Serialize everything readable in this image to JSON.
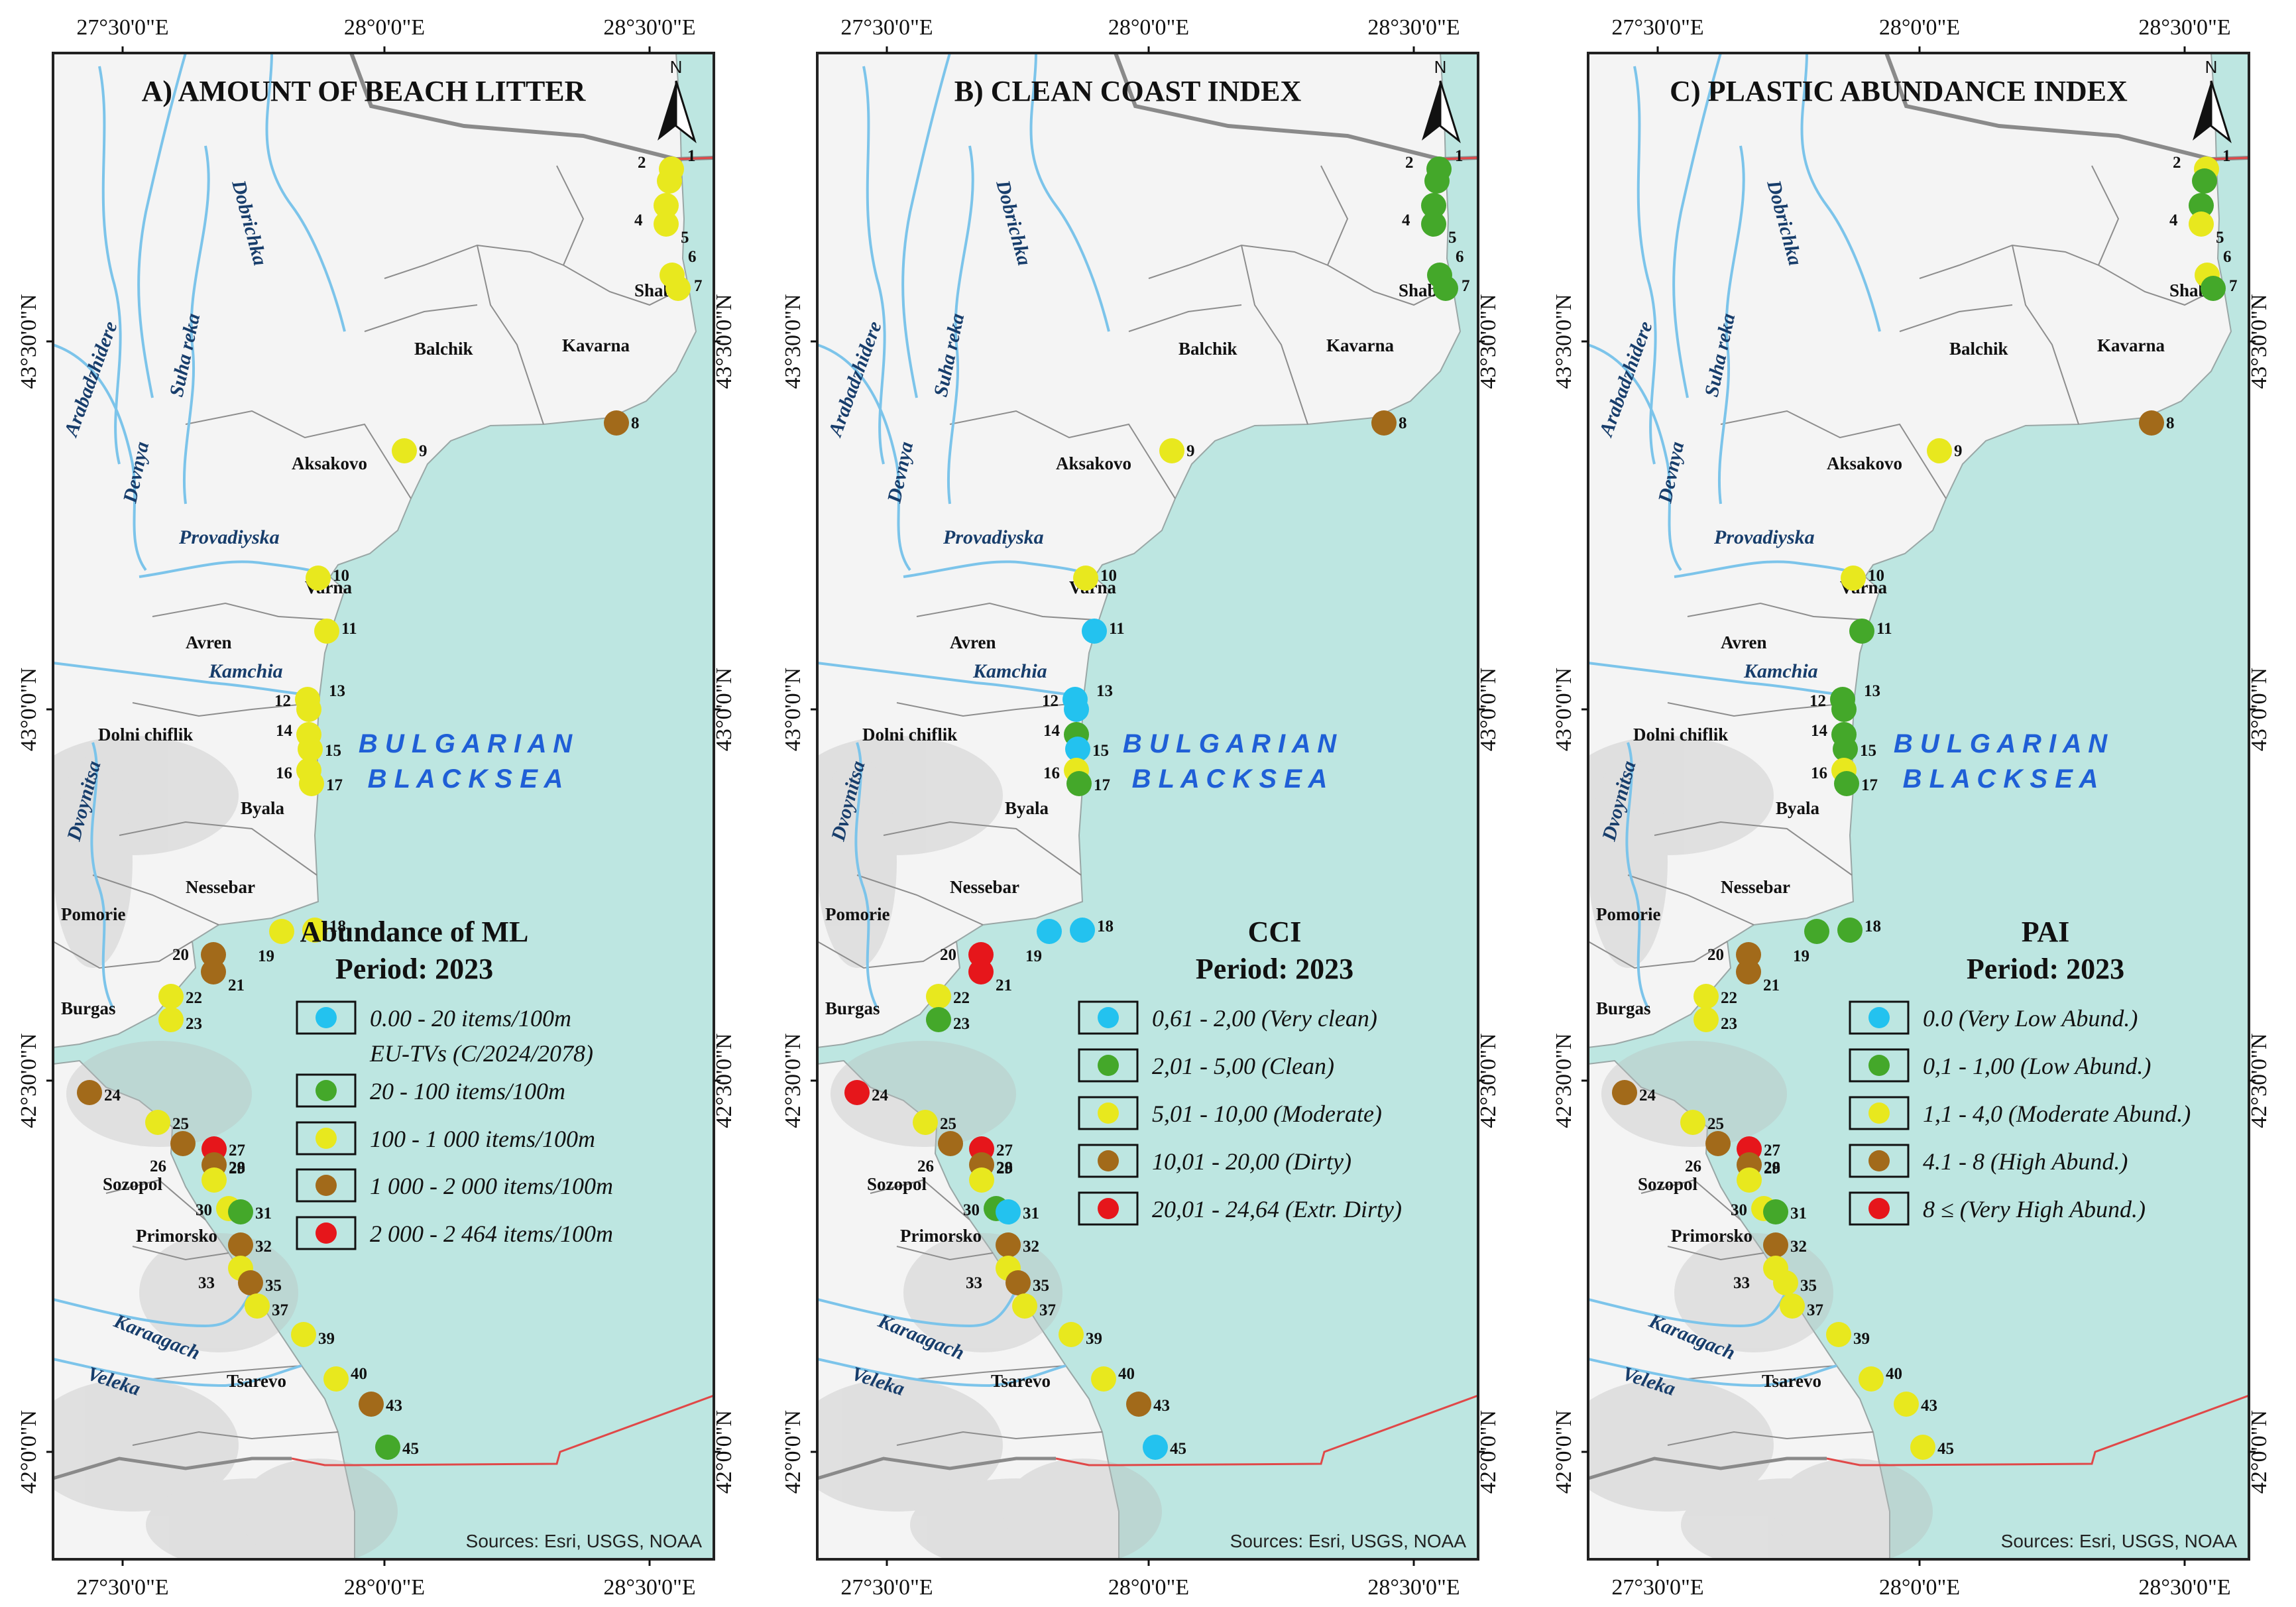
{
  "colors": {
    "sea": "#bde6e1",
    "land": "#f4f4f4",
    "river": "#7cc4ea",
    "border_eu": "#e04848",
    "border_ro": "#8a8a8a",
    "frame": "#222222",
    "sea_label": "#1f5fd6",
    "cls_blue": "#23c2ef",
    "cls_green": "#44a82a",
    "cls_yellow": "#e8e81e",
    "cls_brown": "#a26a1a",
    "cls_red": "#e6161b"
  },
  "axis_labels": {
    "lon_top": [
      "27°30'0\"E",
      "28°0'0\"E",
      "28°30'0\"E"
    ],
    "lon_bottom": [
      "27°30'0\"E",
      "28°0'0\"E",
      "28°30'0\"E"
    ],
    "lat": [
      "43°30'0\"N",
      "43°0'0\"N",
      "42°30'0\"N",
      "42°0'0\"N"
    ]
  },
  "map_text": {
    "north": "N",
    "sea": [
      "B U L G A R I A N",
      "B L A C K   S E A"
    ],
    "source": "Sources: Esri, USGS, NOAA",
    "towns": [
      "Shabla",
      "Kavarna",
      "Balchik",
      "Aksakovo",
      "Varna",
      "Avren",
      "Dolni chiflik",
      "Byala",
      "Nessebar",
      "Pomorie",
      "Burgas",
      "Sozopol",
      "Primorsko",
      "Tsarevo"
    ],
    "rivers": [
      "Dobrichka",
      "Arabadzhidere",
      "Suha reka",
      "Devnya",
      "Provadiyska",
      "Kamchia",
      "Dvoynitsa",
      "Karaagach",
      "Veleka"
    ]
  },
  "sites": [
    "1",
    "2",
    "4",
    "5",
    "6",
    "7",
    "8",
    "9",
    "10",
    "11",
    "12",
    "13",
    "14",
    "15",
    "16",
    "17",
    "18",
    "19",
    "20",
    "21",
    "22",
    "23",
    "24",
    "25",
    "26",
    "27",
    "28",
    "29",
    "30",
    "31",
    "32",
    "33",
    "35",
    "37",
    "39",
    "40",
    "43",
    "45"
  ],
  "panels": [
    {
      "title": "A) AMOUNT OF BEACH LITTER",
      "legend_title": [
        "Abundance of ML",
        "Period: 2023"
      ],
      "legend_items": [
        {
          "label": "0.00 - 20 items/100m",
          "color": "blue"
        },
        {
          "label": "20 - 100 items/100m",
          "color": "green"
        },
        {
          "label": "100 - 1 000 items/100m",
          "color": "yellow"
        },
        {
          "label": "1 000 - 2 000 items/100m",
          "color": "brown"
        },
        {
          "label": "2 000 - 2 464 items/100m",
          "color": "red"
        }
      ],
      "legend_note": "EU-TVs (C/2024/2078)",
      "site_classes": [
        "yellow",
        "yellow",
        "yellow",
        "yellow",
        "yellow",
        "yellow",
        "brown",
        "yellow",
        "yellow",
        "yellow",
        "yellow",
        "yellow",
        "yellow",
        "yellow",
        "yellow",
        "yellow",
        "yellow",
        "yellow",
        "brown",
        "brown",
        "yellow",
        "yellow",
        "brown",
        "yellow",
        "brown",
        "red",
        "brown",
        "yellow",
        "yellow",
        "green",
        "brown",
        "yellow",
        "brown",
        "yellow",
        "yellow",
        "yellow",
        "brown",
        "green"
      ]
    },
    {
      "title": "B) CLEAN COAST INDEX",
      "legend_title": [
        "CCI",
        "Period: 2023"
      ],
      "legend_items": [
        {
          "label": "0,61 - 2,00 (Very clean)",
          "color": "blue"
        },
        {
          "label": "2,01 - 5,00 (Clean)",
          "color": "green"
        },
        {
          "label": "5,01 - 10,00 (Moderate)",
          "color": "yellow"
        },
        {
          "label": "10,01 - 20,00 (Dirty)",
          "color": "brown"
        },
        {
          "label": "20,01 - 24,64 (Extr. Dirty)",
          "color": "red"
        }
      ],
      "legend_note": "",
      "site_classes": [
        "green",
        "green",
        "green",
        "green",
        "green",
        "green",
        "brown",
        "yellow",
        "yellow",
        "blue",
        "blue",
        "blue",
        "green",
        "blue",
        "yellow",
        "green",
        "blue",
        "blue",
        "red",
        "red",
        "yellow",
        "green",
        "red",
        "yellow",
        "brown",
        "red",
        "brown",
        "yellow",
        "green",
        "blue",
        "brown",
        "yellow",
        "brown",
        "yellow",
        "yellow",
        "yellow",
        "brown",
        "blue"
      ]
    },
    {
      "title": "C) PLASTIC ABUNDANCE INDEX",
      "legend_title": [
        "PAI",
        "Period: 2023"
      ],
      "legend_items": [
        {
          "label": "0.0 (Very Low Abund.)",
          "color": "blue"
        },
        {
          "label": "0,1 - 1,00 (Low Abund.)",
          "color": "green"
        },
        {
          "label": "1,1 - 4,0 (Moderate Abund.)",
          "color": "yellow"
        },
        {
          "label": "4.1 - 8 (High Abund.)",
          "color": "brown"
        },
        {
          "label": "8 ≤ (Very High Abund.)",
          "color": "red"
        }
      ],
      "legend_note": "",
      "site_classes": [
        "yellow",
        "green",
        "green",
        "yellow",
        "yellow",
        "green",
        "brown",
        "yellow",
        "yellow",
        "green",
        "green",
        "green",
        "green",
        "green",
        "yellow",
        "green",
        "green",
        "green",
        "brown",
        "brown",
        "yellow",
        "yellow",
        "brown",
        "yellow",
        "brown",
        "red",
        "brown",
        "yellow",
        "yellow",
        "green",
        "brown",
        "yellow",
        "yellow",
        "yellow",
        "yellow",
        "yellow",
        "yellow",
        "yellow"
      ]
    }
  ]
}
